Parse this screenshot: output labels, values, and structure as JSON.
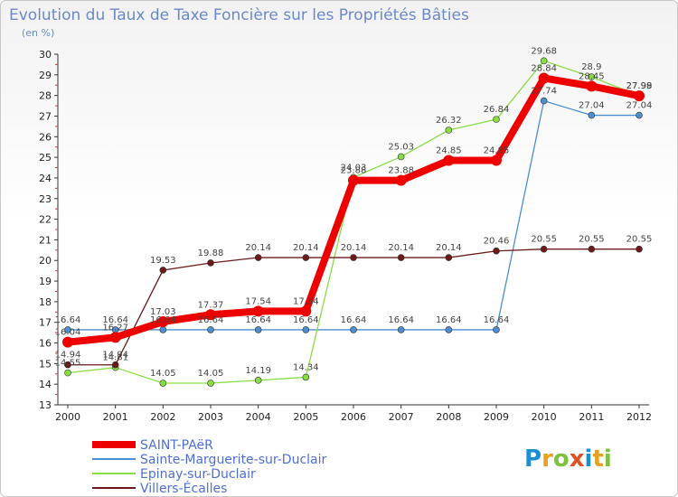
{
  "chart_data": {
    "type": "line",
    "title": "Evolution du Taux de Taxe Foncière sur les Propriétés Bâties",
    "ylabel": "(en %)",
    "xlabel": "",
    "ylim": [
      13,
      30
    ],
    "y_ticks": [
      13,
      14,
      15,
      16,
      17,
      18,
      19,
      20,
      21,
      22,
      23,
      24,
      25,
      26,
      27,
      28,
      29,
      30
    ],
    "categories": [
      "2000",
      "2001",
      "2002",
      "2003",
      "2004",
      "2005",
      "2006",
      "2007",
      "2008",
      "2009",
      "2010",
      "2011",
      "2012"
    ],
    "grid": false,
    "legend_position": "bottom-left",
    "series": [
      {
        "name": "SAINT-PAëR",
        "color": "#ee0000",
        "values": [
          16.04,
          16.27,
          17.03,
          17.37,
          17.54,
          17.54,
          23.88,
          23.88,
          24.85,
          24.85,
          28.84,
          28.45,
          27.98
        ],
        "labels": [
          "16.04",
          "16.27",
          "17.03",
          "17.37",
          "17.54",
          "17.54",
          "23.88",
          "23.88",
          "24.85",
          "24.85",
          "28.84",
          "28.45",
          "27.98"
        ]
      },
      {
        "name": "Sainte-Marguerite-sur-Duclair",
        "color": "#4c8ed0",
        "values": [
          16.64,
          16.64,
          16.64,
          16.64,
          16.64,
          16.64,
          16.64,
          16.64,
          16.64,
          16.64,
          27.74,
          27.04,
          27.04
        ],
        "labels": [
          "16.64",
          "16.64",
          "16.64",
          "16.64",
          "16.64",
          "16.64",
          "16.64",
          "16.64",
          "16.64",
          "16.64",
          "27.74",
          "27.04",
          "27.04"
        ]
      },
      {
        "name": "Epinay-sur-Duclair",
        "color": "#88dd44",
        "values": [
          14.55,
          14.81,
          14.05,
          14.05,
          14.19,
          14.34,
          24.03,
          25.03,
          26.32,
          26.84,
          29.68,
          28.9,
          27.99
        ],
        "labels": [
          "14.55",
          "14.81",
          "14.05",
          "14.05",
          "14.19",
          "14.34",
          "24.03",
          "25.03",
          "26.32",
          "26.84",
          "29.68",
          "28.9",
          "27.99"
        ]
      },
      {
        "name": "Villers-Écalles",
        "color": "#6b1a1a",
        "values": [
          14.94,
          14.94,
          19.53,
          19.88,
          20.14,
          20.14,
          20.14,
          20.14,
          20.14,
          20.46,
          20.55,
          20.55,
          20.55
        ],
        "labels": [
          "14.94",
          "14.94",
          "19.53",
          "19.88",
          "20.14",
          "20.14",
          "20.14",
          "20.14",
          "20.14",
          "20.46",
          "20.55",
          "20.55",
          "20.55"
        ]
      }
    ]
  },
  "brand": {
    "name": "Proxiti",
    "letters": [
      "P",
      "r",
      "o",
      "x",
      "i",
      "t",
      "i"
    ],
    "colors": [
      "#1a8fd4",
      "#e8a020",
      "#7cc23a",
      "#e05020",
      "#1a8fd4",
      "#e8a020",
      "#7cc23a"
    ]
  }
}
